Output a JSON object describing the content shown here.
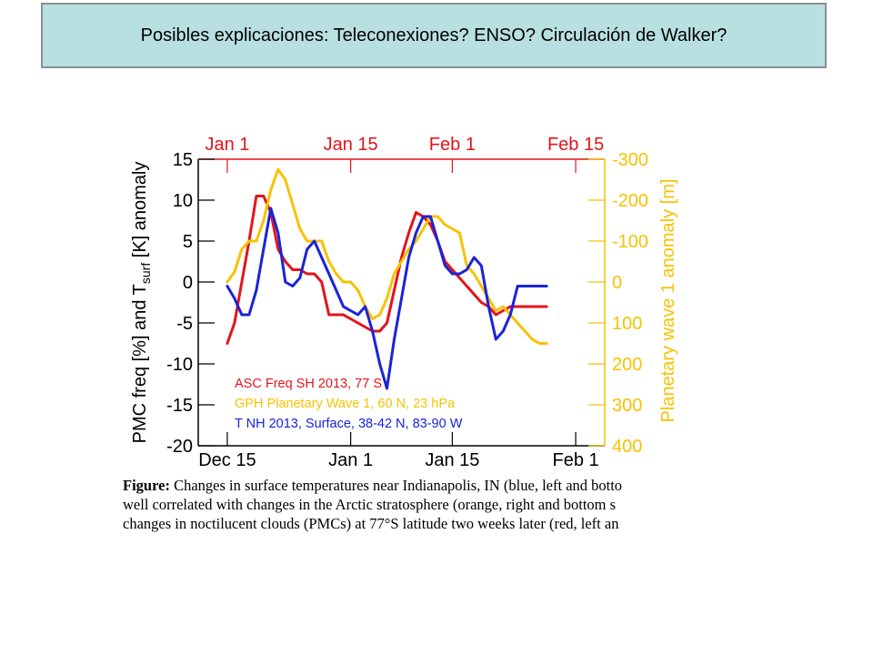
{
  "slide": {
    "title": "Posibles explicaciones: Teleconexiones? ENSO? Circulación de Walker?"
  },
  "caption": {
    "label": "Figure:",
    "line1": " Changes in surface temperatures near Indianapolis, IN (blue, left and botto",
    "line2": "well correlated with changes in the Arctic stratosphere (orange, right and bottom s",
    "line3": "changes in noctilucent clouds (PMCs) at 77°S latitude two weeks later (red, left an"
  },
  "chart_data": {
    "type": "line",
    "ylabel_left": "PMC freq [%] and T_surf [K] anomaly",
    "ylabel_left_parts": {
      "pre": "PMC freq [%] and T",
      "sub": "surf",
      "post": " [K] anomaly"
    },
    "ylabel_right": "Planetary wave 1 anomaly [m]",
    "ylim_left": [
      -20,
      15
    ],
    "ylim_right": [
      400,
      -300
    ],
    "yticks_left": [
      15,
      10,
      5,
      0,
      -5,
      -10,
      -15,
      -20
    ],
    "yticks_right": [
      -300,
      -200,
      -100,
      0,
      100,
      200,
      300,
      400
    ],
    "xlim_days": [
      -4,
      52
    ],
    "bottom_axis": {
      "labels": [
        "Dec 15",
        "Jan 1",
        "Jan 15",
        "Feb 1"
      ],
      "days": [
        0,
        17,
        31,
        48
      ]
    },
    "top_axis": {
      "labels": [
        "Jan 1",
        "Jan 15",
        "Feb 1",
        "Feb 15"
      ],
      "days": [
        0,
        17,
        31,
        48
      ]
    },
    "legend": [
      {
        "name": "ASC Freq SH 2013,  77 S",
        "color": "#e4141b"
      },
      {
        "name": "GPH Planetary Wave 1, 60 N, 23 hPa",
        "color": "#f8c200"
      },
      {
        "name": "T NH 2013, Surface, 38-42 N, 83-90 W",
        "color": "#1a23d8"
      }
    ],
    "legend_position": "bottom-left",
    "colors": {
      "red": "#e4141b",
      "orange": "#f8c200",
      "blue": "#1a23d8",
      "top_axis": "#e4141b",
      "right_axis": "#f8c200"
    },
    "series": [
      {
        "name": "ASC Freq SH 2013,  77 S",
        "axis": "left",
        "color": "#e4141b",
        "x": [
          0,
          1,
          2,
          3,
          4,
          5,
          6,
          7,
          8,
          9,
          10,
          11,
          12,
          13,
          14,
          15,
          16,
          17,
          18,
          19,
          20,
          21,
          22,
          23,
          24,
          25,
          26,
          27,
          28,
          29,
          30,
          31,
          32,
          33,
          34,
          35,
          36,
          37,
          38,
          39,
          40,
          41,
          42,
          43,
          44
        ],
        "y": [
          -7.5,
          -5,
          0,
          5,
          10.5,
          10.5,
          8.5,
          4,
          2.5,
          1.5,
          1.5,
          1,
          1,
          0,
          -4,
          -4,
          -4,
          -4.5,
          -5,
          -5.5,
          -6,
          -6,
          -5,
          -1,
          3,
          6,
          8.5,
          8,
          7,
          5,
          2.5,
          1.5,
          0.5,
          -0.5,
          -1.5,
          -2.5,
          -3,
          -4,
          -3.5,
          -3,
          -3,
          -3,
          -3,
          -3,
          -3
        ]
      },
      {
        "name": "GPH Planetary Wave 1, 60 N, 23 hPa",
        "axis": "right",
        "color": "#f8c200",
        "x": [
          0,
          1,
          2,
          3,
          4,
          5,
          6,
          7,
          8,
          9,
          10,
          11,
          12,
          13,
          14,
          15,
          16,
          17,
          18,
          19,
          20,
          21,
          22,
          23,
          24,
          25,
          26,
          27,
          28,
          29,
          30,
          31,
          32,
          33,
          34,
          35,
          36,
          37,
          38,
          39,
          40,
          41,
          42,
          43,
          44
        ],
        "y": [
          0,
          -25,
          -80,
          -100,
          -100,
          -150,
          -225,
          -275,
          -250,
          -190,
          -130,
          -100,
          -100,
          -100,
          -50,
          -20,
          0,
          0,
          20,
          60,
          90,
          80,
          40,
          -20,
          -50,
          -80,
          -100,
          -130,
          -160,
          -160,
          -140,
          -130,
          -120,
          -40,
          -20,
          10,
          40,
          70,
          60,
          80,
          100,
          120,
          140,
          150,
          150
        ]
      },
      {
        "name": "T NH 2013, Surface, 38-42 N, 83-90 W",
        "axis": "left",
        "color": "#1a23d8",
        "x": [
          0,
          1,
          2,
          3,
          4,
          5,
          6,
          7,
          8,
          9,
          10,
          11,
          12,
          13,
          14,
          15,
          16,
          17,
          18,
          19,
          20,
          21,
          22,
          23,
          24,
          25,
          26,
          27,
          28,
          29,
          30,
          31,
          32,
          33,
          34,
          35,
          36,
          37,
          38,
          39,
          40,
          41,
          42,
          43,
          44
        ],
        "y": [
          -0.5,
          -2,
          -4,
          -4,
          -1,
          4,
          9,
          6,
          0,
          -0.5,
          0.5,
          4,
          5,
          3,
          1,
          -1,
          -3,
          -3.5,
          -4,
          -3,
          -6,
          -10,
          -13,
          -7,
          -2,
          3,
          6,
          8,
          8,
          5,
          2,
          1,
          1,
          1.5,
          3,
          2,
          -3,
          -7,
          -6,
          -4,
          -0.5,
          -0.5,
          -0.5,
          -0.5,
          -0.5
        ]
      }
    ]
  }
}
